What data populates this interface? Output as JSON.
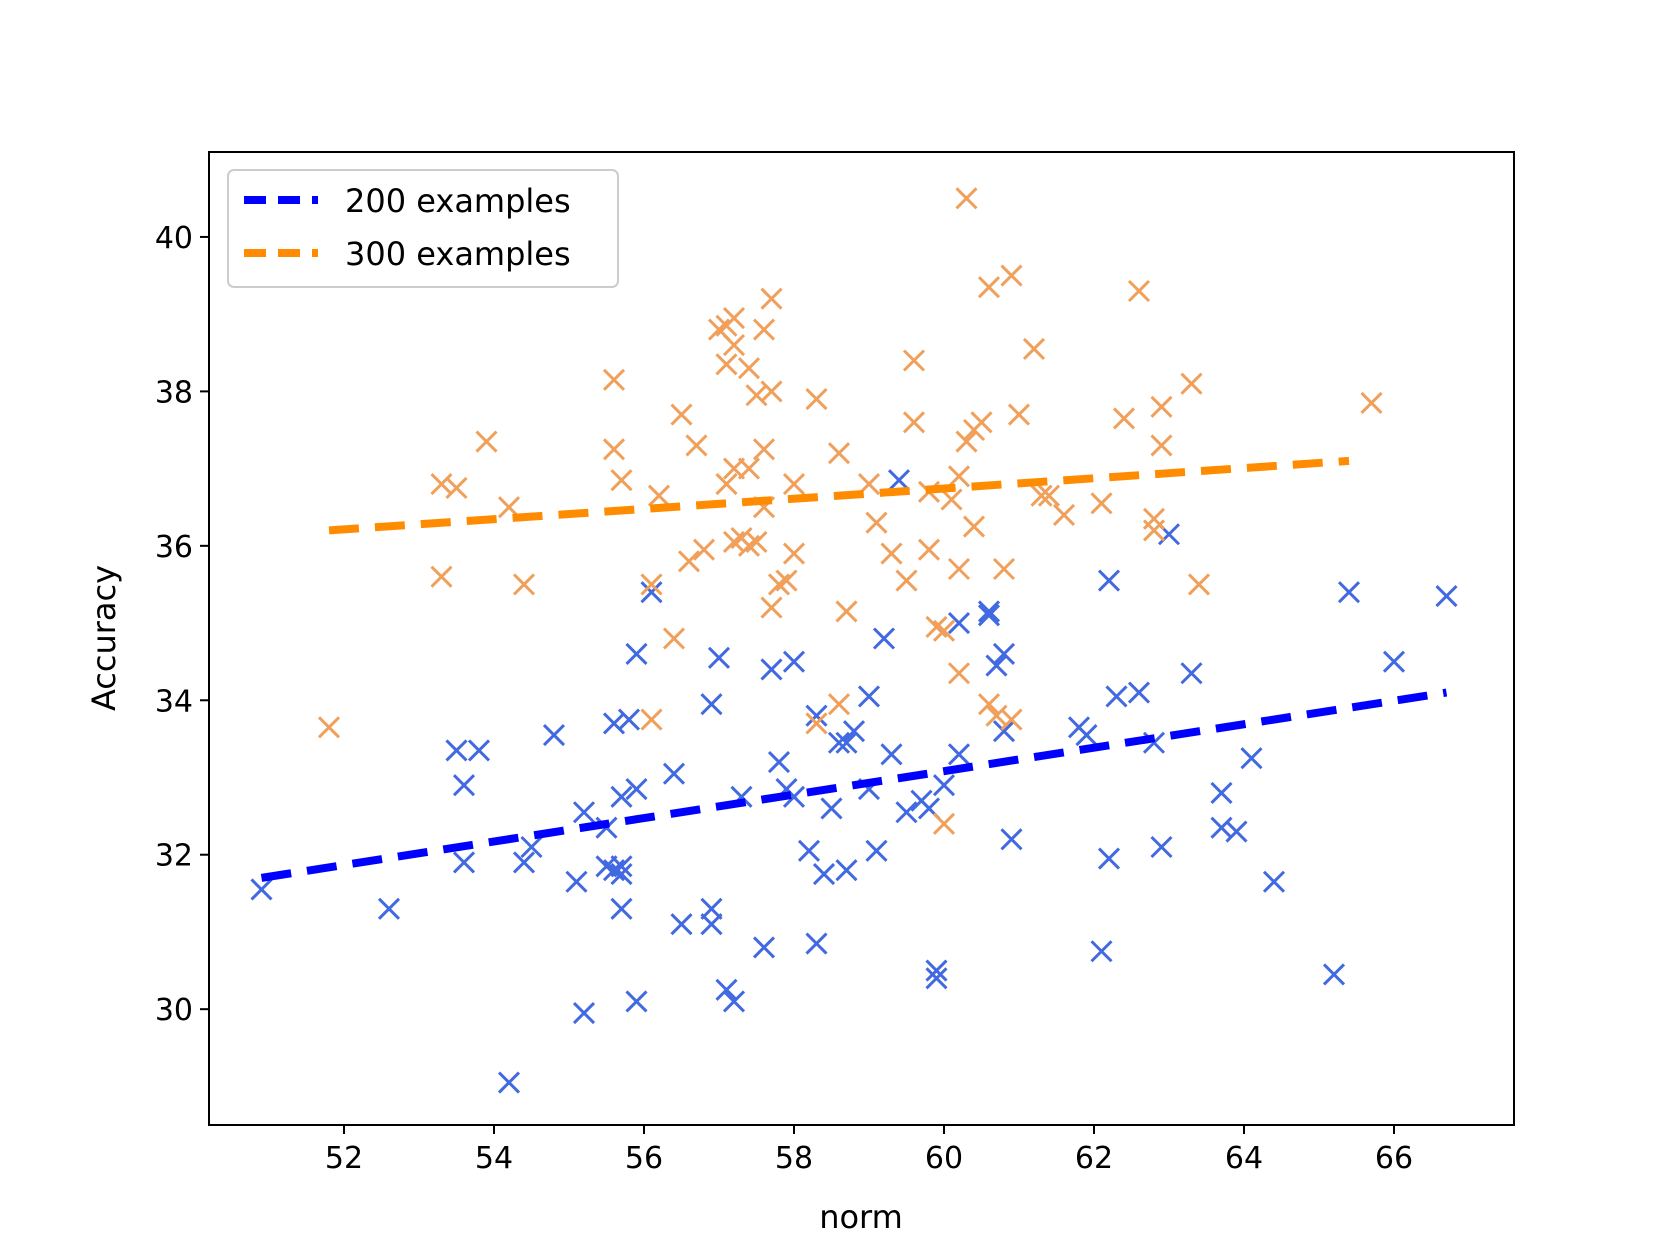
{
  "chart_data": {
    "type": "scatter",
    "title": "",
    "xlabel": "norm",
    "ylabel": "Accuracy",
    "xlim": [
      50.2,
      67.6
    ],
    "ylim": [
      28.5,
      41.1
    ],
    "xticks": [
      52,
      54,
      56,
      58,
      60,
      62,
      64,
      66
    ],
    "yticks": [
      30,
      32,
      34,
      36,
      38,
      40
    ],
    "grid": false,
    "legend_position": "top-left",
    "series": [
      {
        "name": "200 examples",
        "color": "#4169e1",
        "line_color": "#0000ff",
        "marker": "x",
        "points": [
          [
            50.9,
            31.55
          ],
          [
            52.6,
            31.3
          ],
          [
            53.5,
            33.35
          ],
          [
            53.6,
            32.9
          ],
          [
            53.6,
            31.9
          ],
          [
            53.8,
            33.35
          ],
          [
            54.2,
            29.05
          ],
          [
            54.4,
            31.9
          ],
          [
            54.5,
            32.1
          ],
          [
            54.8,
            33.55
          ],
          [
            55.1,
            31.65
          ],
          [
            55.2,
            29.95
          ],
          [
            55.2,
            32.55
          ],
          [
            55.5,
            31.85
          ],
          [
            55.5,
            32.35
          ],
          [
            55.6,
            33.7
          ],
          [
            55.6,
            31.8
          ],
          [
            55.7,
            31.75
          ],
          [
            55.7,
            31.85
          ],
          [
            55.7,
            32.75
          ],
          [
            55.7,
            31.3
          ],
          [
            55.8,
            33.75
          ],
          [
            55.9,
            32.85
          ],
          [
            55.9,
            30.1
          ],
          [
            55.9,
            34.6
          ],
          [
            56.1,
            35.4
          ],
          [
            56.4,
            33.05
          ],
          [
            56.5,
            31.1
          ],
          [
            56.9,
            31.3
          ],
          [
            56.9,
            33.95
          ],
          [
            56.9,
            31.1
          ],
          [
            57.0,
            34.55
          ],
          [
            57.1,
            30.25
          ],
          [
            57.2,
            30.1
          ],
          [
            57.3,
            32.75
          ],
          [
            57.6,
            30.8
          ],
          [
            57.7,
            34.4
          ],
          [
            57.8,
            33.2
          ],
          [
            57.9,
            32.85
          ],
          [
            58.0,
            32.75
          ],
          [
            58.0,
            34.5
          ],
          [
            58.2,
            32.05
          ],
          [
            58.3,
            30.85
          ],
          [
            58.3,
            33.8
          ],
          [
            58.4,
            31.75
          ],
          [
            58.5,
            32.6
          ],
          [
            58.6,
            33.45
          ],
          [
            58.7,
            31.8
          ],
          [
            58.7,
            33.45
          ],
          [
            58.8,
            33.6
          ],
          [
            59.0,
            32.85
          ],
          [
            59.0,
            34.05
          ],
          [
            59.1,
            32.05
          ],
          [
            59.2,
            34.8
          ],
          [
            59.3,
            33.3
          ],
          [
            59.4,
            36.85
          ],
          [
            59.5,
            32.55
          ],
          [
            59.7,
            32.7
          ],
          [
            59.8,
            32.6
          ],
          [
            59.9,
            30.4
          ],
          [
            59.9,
            30.5
          ],
          [
            60.0,
            32.9
          ],
          [
            60.2,
            35.0
          ],
          [
            60.2,
            33.3
          ],
          [
            60.6,
            35.15
          ],
          [
            60.6,
            35.1
          ],
          [
            60.7,
            34.45
          ],
          [
            60.8,
            34.6
          ],
          [
            60.8,
            33.6
          ],
          [
            60.9,
            32.2
          ],
          [
            61.8,
            33.65
          ],
          [
            61.9,
            33.55
          ],
          [
            62.1,
            30.75
          ],
          [
            62.2,
            35.55
          ],
          [
            62.2,
            31.95
          ],
          [
            62.3,
            34.05
          ],
          [
            62.6,
            34.1
          ],
          [
            62.8,
            33.45
          ],
          [
            62.9,
            32.1
          ],
          [
            63.0,
            36.15
          ],
          [
            63.3,
            34.35
          ],
          [
            63.7,
            32.8
          ],
          [
            63.7,
            32.35
          ],
          [
            63.9,
            32.3
          ],
          [
            64.1,
            33.25
          ],
          [
            64.4,
            31.65
          ],
          [
            65.2,
            30.45
          ],
          [
            65.4,
            35.4
          ],
          [
            66.0,
            34.5
          ],
          [
            66.7,
            35.35
          ]
        ],
        "fit_line": [
          [
            50.9,
            31.7
          ],
          [
            66.7,
            34.1
          ]
        ]
      },
      {
        "name": "300 examples",
        "color": "#f0a05a",
        "line_color": "#ff8c00",
        "marker": "x",
        "points": [
          [
            51.8,
            33.65
          ],
          [
            53.3,
            36.8
          ],
          [
            53.3,
            35.6
          ],
          [
            53.5,
            36.75
          ],
          [
            53.9,
            37.35
          ],
          [
            54.2,
            36.5
          ],
          [
            54.4,
            35.5
          ],
          [
            55.6,
            38.15
          ],
          [
            55.6,
            37.25
          ],
          [
            55.7,
            36.85
          ],
          [
            56.1,
            35.5
          ],
          [
            56.2,
            36.65
          ],
          [
            56.1,
            33.75
          ],
          [
            56.4,
            34.8
          ],
          [
            56.5,
            37.7
          ],
          [
            56.6,
            35.8
          ],
          [
            56.7,
            37.3
          ],
          [
            56.8,
            35.95
          ],
          [
            57.0,
            38.8
          ],
          [
            57.1,
            38.85
          ],
          [
            57.1,
            38.35
          ],
          [
            57.2,
            38.95
          ],
          [
            57.2,
            38.6
          ],
          [
            57.2,
            37.0
          ],
          [
            57.1,
            36.8
          ],
          [
            57.2,
            36.05
          ],
          [
            57.3,
            36.1
          ],
          [
            57.4,
            38.3
          ],
          [
            57.4,
            37.0
          ],
          [
            57.4,
            36.0
          ],
          [
            57.5,
            36.05
          ],
          [
            57.5,
            37.95
          ],
          [
            57.6,
            38.8
          ],
          [
            57.6,
            37.25
          ],
          [
            57.6,
            36.5
          ],
          [
            57.7,
            39.2
          ],
          [
            57.7,
            38.0
          ],
          [
            57.7,
            35.2
          ],
          [
            57.8,
            35.5
          ],
          [
            57.9,
            35.55
          ],
          [
            58.0,
            35.9
          ],
          [
            58.0,
            36.8
          ],
          [
            58.3,
            37.9
          ],
          [
            58.3,
            33.7
          ],
          [
            58.6,
            37.2
          ],
          [
            58.6,
            33.95
          ],
          [
            58.7,
            35.15
          ],
          [
            59.0,
            36.8
          ],
          [
            59.1,
            36.3
          ],
          [
            59.3,
            35.9
          ],
          [
            59.5,
            35.55
          ],
          [
            59.6,
            38.4
          ],
          [
            59.6,
            37.6
          ],
          [
            59.8,
            35.95
          ],
          [
            59.8,
            36.7
          ],
          [
            59.9,
            34.95
          ],
          [
            60.0,
            34.9
          ],
          [
            60.0,
            32.4
          ],
          [
            60.1,
            36.6
          ],
          [
            60.2,
            36.9
          ],
          [
            60.2,
            35.7
          ],
          [
            60.2,
            34.35
          ],
          [
            60.3,
            40.5
          ],
          [
            60.3,
            37.35
          ],
          [
            60.4,
            37.5
          ],
          [
            60.4,
            36.25
          ],
          [
            60.5,
            37.6
          ],
          [
            60.6,
            39.35
          ],
          [
            60.6,
            33.95
          ],
          [
            60.7,
            33.8
          ],
          [
            60.8,
            35.7
          ],
          [
            60.9,
            33.75
          ],
          [
            60.9,
            39.5
          ],
          [
            61.0,
            37.7
          ],
          [
            61.2,
            38.55
          ],
          [
            61.3,
            36.65
          ],
          [
            61.4,
            36.65
          ],
          [
            61.6,
            36.4
          ],
          [
            62.1,
            36.55
          ],
          [
            62.4,
            37.65
          ],
          [
            62.6,
            39.3
          ],
          [
            62.8,
            36.35
          ],
          [
            62.8,
            36.2
          ],
          [
            62.9,
            37.8
          ],
          [
            62.9,
            37.3
          ],
          [
            63.3,
            38.1
          ],
          [
            63.4,
            35.5
          ],
          [
            65.7,
            37.85
          ]
        ],
        "fit_line": [
          [
            51.8,
            36.2
          ],
          [
            65.4,
            37.1
          ]
        ]
      }
    ]
  }
}
